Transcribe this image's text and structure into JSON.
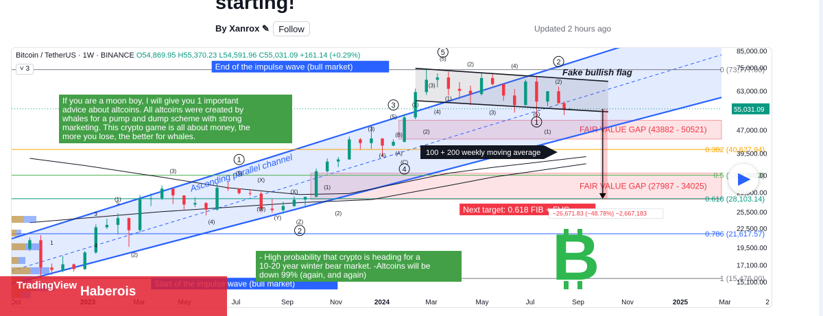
{
  "post": {
    "title": "starting!",
    "author_prefix": "By",
    "author": "Xanrox",
    "follow_label": "Follow",
    "updated": "Updated 2 hours ago"
  },
  "symbol_bar": {
    "symbol": "Bitcoin / TetherUS · 1W · BINANCE",
    "ohlc": "O54,869.95 H55,370.23 L54,591.96 C55,031.09 +161.14 (+0.29%)",
    "collapse_label": "˅ 3"
  },
  "brand": {
    "logo": "TradingView",
    "handle": "Haberois"
  },
  "colors": {
    "up_candle": "#089981",
    "down_candle": "#f23645",
    "channel_line": "#2962ff",
    "channel_fill": "rgba(41,98,255,0.13)",
    "fvg_fill": "rgba(242,54,69,0.14)",
    "fib_0382": "#f7a600",
    "fib_05": "#4caf50",
    "fib_0618": "#089981",
    "fib_0786": "#2962ff",
    "bitcoin_logo": "#2eb84f",
    "green_note": "#43a047",
    "red_label": "#f23645"
  },
  "chart_data": {
    "type": "candlestick",
    "title": "Bitcoin / TetherUS · 1W · BINANCE",
    "x_tick_labels": [
      "Oct",
      "2023",
      "Mar",
      "May",
      "Jul",
      "Sep",
      "Nov",
      "2024",
      "Mar",
      "May",
      "Jul",
      "Sep",
      "Nov",
      "2025",
      "Mar",
      "2"
    ],
    "y_tick_values": [
      15100,
      17100,
      19500,
      22500,
      25500,
      29500,
      33500,
      39500,
      47000,
      55000,
      63000,
      75000,
      85000
    ],
    "y_scale": "log",
    "ylim": [
      14500,
      87000
    ],
    "current_price": 55031.09,
    "candles": [
      {
        "date": "2022-10-24",
        "open": 19300,
        "high": 21000,
        "low": 19000,
        "close": 20600
      },
      {
        "date": "2022-11-07",
        "open": 20600,
        "high": 21400,
        "low": 15500,
        "close": 16800
      },
      {
        "date": "2022-11-21",
        "open": 16800,
        "high": 17300,
        "low": 15900,
        "close": 16500
      },
      {
        "date": "2022-12-05",
        "open": 16500,
        "high": 18300,
        "low": 16200,
        "close": 17200
      },
      {
        "date": "2022-12-19",
        "open": 17200,
        "high": 17300,
        "low": 16300,
        "close": 16600
      },
      {
        "date": "2023-01-02",
        "open": 16600,
        "high": 19000,
        "low": 16500,
        "close": 18800
      },
      {
        "date": "2023-01-16",
        "open": 18800,
        "high": 23200,
        "low": 18600,
        "close": 22700
      },
      {
        "date": "2023-01-30",
        "open": 22700,
        "high": 24200,
        "low": 22400,
        "close": 23100
      },
      {
        "date": "2023-02-13",
        "open": 23100,
        "high": 25200,
        "low": 21500,
        "close": 24300
      },
      {
        "date": "2023-02-27",
        "open": 24300,
        "high": 24400,
        "low": 19600,
        "close": 22200
      },
      {
        "date": "2023-03-13",
        "open": 22200,
        "high": 28900,
        "low": 21800,
        "close": 28000
      },
      {
        "date": "2023-03-27",
        "open": 28000,
        "high": 29200,
        "low": 26600,
        "close": 28200
      },
      {
        "date": "2023-04-10",
        "open": 28200,
        "high": 31000,
        "low": 27800,
        "close": 30300
      },
      {
        "date": "2023-04-24",
        "open": 30300,
        "high": 30100,
        "low": 27000,
        "close": 28800
      },
      {
        "date": "2023-05-08",
        "open": 28800,
        "high": 28600,
        "low": 25900,
        "close": 26900
      },
      {
        "date": "2023-05-22",
        "open": 26900,
        "high": 28400,
        "low": 26400,
        "close": 27200
      },
      {
        "date": "2023-06-05",
        "open": 27200,
        "high": 27400,
        "low": 24800,
        "close": 25900
      },
      {
        "date": "2023-06-19",
        "open": 25900,
        "high": 31400,
        "low": 25700,
        "close": 30500
      },
      {
        "date": "2023-07-03",
        "open": 30500,
        "high": 31800,
        "low": 29800,
        "close": 30300
      },
      {
        "date": "2023-07-17",
        "open": 30300,
        "high": 30400,
        "low": 29000,
        "close": 29300
      },
      {
        "date": "2023-07-31",
        "open": 29300,
        "high": 30000,
        "low": 28700,
        "close": 29200
      },
      {
        "date": "2023-08-14",
        "open": 29200,
        "high": 29600,
        "low": 25300,
        "close": 26100
      },
      {
        "date": "2023-08-28",
        "open": 26100,
        "high": 28100,
        "low": 25300,
        "close": 25800
      },
      {
        "date": "2023-09-11",
        "open": 25800,
        "high": 27500,
        "low": 25100,
        "close": 26600
      },
      {
        "date": "2023-09-25",
        "open": 26600,
        "high": 28600,
        "low": 26400,
        "close": 27900
      },
      {
        "date": "2023-10-09",
        "open": 27900,
        "high": 28200,
        "low": 26500,
        "close": 28500
      },
      {
        "date": "2023-10-23",
        "open": 28500,
        "high": 35200,
        "low": 28400,
        "close": 34500
      },
      {
        "date": "2023-11-06",
        "open": 34500,
        "high": 38000,
        "low": 34200,
        "close": 37100
      },
      {
        "date": "2023-11-20",
        "open": 37100,
        "high": 38400,
        "low": 35600,
        "close": 37700
      },
      {
        "date": "2023-12-04",
        "open": 37700,
        "high": 44700,
        "low": 37600,
        "close": 43800
      },
      {
        "date": "2023-12-18",
        "open": 43800,
        "high": 44300,
        "low": 40500,
        "close": 42600
      },
      {
        "date": "2024-01-01",
        "open": 42600,
        "high": 48900,
        "low": 40800,
        "close": 44100
      },
      {
        "date": "2024-01-15",
        "open": 44100,
        "high": 44200,
        "low": 38600,
        "close": 41800
      },
      {
        "date": "2024-01-29",
        "open": 41800,
        "high": 43800,
        "low": 41600,
        "close": 43000
      },
      {
        "date": "2024-02-12",
        "open": 43000,
        "high": 52800,
        "low": 42800,
        "close": 51600
      },
      {
        "date": "2024-02-26",
        "open": 51600,
        "high": 64000,
        "low": 50900,
        "close": 62400
      },
      {
        "date": "2024-03-11",
        "open": 62400,
        "high": 73777,
        "low": 61100,
        "close": 68400
      },
      {
        "date": "2024-03-25",
        "open": 68400,
        "high": 71700,
        "low": 64600,
        "close": 69600
      },
      {
        "date": "2024-04-08",
        "open": 69600,
        "high": 72700,
        "low": 60800,
        "close": 63900
      },
      {
        "date": "2024-04-22",
        "open": 63900,
        "high": 67200,
        "low": 59200,
        "close": 63000
      },
      {
        "date": "2024-05-06",
        "open": 63000,
        "high": 65500,
        "low": 56600,
        "close": 61500
      },
      {
        "date": "2024-05-20",
        "open": 61500,
        "high": 71900,
        "low": 60800,
        "close": 69300
      },
      {
        "date": "2024-06-03",
        "open": 69300,
        "high": 72000,
        "low": 65500,
        "close": 66200
      },
      {
        "date": "2024-06-17",
        "open": 66200,
        "high": 66700,
        "low": 58400,
        "close": 60800
      },
      {
        "date": "2024-07-01",
        "open": 60800,
        "high": 63800,
        "low": 53500,
        "close": 56600
      },
      {
        "date": "2024-07-15",
        "open": 56600,
        "high": 68400,
        "low": 56500,
        "close": 67500
      },
      {
        "date": "2024-07-29",
        "open": 67500,
        "high": 69900,
        "low": 49100,
        "close": 58100
      },
      {
        "date": "2024-08-12",
        "open": 58100,
        "high": 62700,
        "low": 56100,
        "close": 62800
      },
      {
        "date": "2024-08-26",
        "open": 62800,
        "high": 65000,
        "low": 57200,
        "close": 57400
      },
      {
        "date": "2024-09-02",
        "open": 57400,
        "high": 58200,
        "low": 52500,
        "close": 54900
      },
      {
        "date": "2024-09-09",
        "open": 54869.95,
        "high": 55370.23,
        "low": 54591.96,
        "close": 55031.09
      }
    ],
    "channel": {
      "label": "Ascending parallel channel",
      "upper": [
        {
          "date": "2022-12-05",
          "price": 23500
        },
        {
          "date": "2024-11-04",
          "price": 86000
        }
      ],
      "middle": [
        {
          "date": "2022-11-07",
          "price": 17500
        },
        {
          "date": "2024-11-04",
          "price": 64500
        }
      ],
      "lower": [
        {
          "date": "2022-10-24",
          "price": 15400
        },
        {
          "date": "2024-11-04",
          "price": 48500
        }
      ]
    },
    "flag": {
      "label": "Fake bullish flag",
      "top": [
        {
          "date": "2024-02-26",
          "price": 74500
        },
        {
          "date": "2024-10-28",
          "price": 67600
        }
      ],
      "bottom": [
        {
          "date": "2024-02-26",
          "price": 58500
        },
        {
          "date": "2024-10-28",
          "price": 53800
        }
      ]
    },
    "horizontal_levels": [
      {
        "label": "0 (73,777.00)",
        "price": 73777,
        "color_key": "fib_0"
      },
      {
        "label": "0.382 (40,627.94)",
        "price": 40627.94,
        "color_key": "fib_0382"
      },
      {
        "label": "0.5 (33,503.63)",
        "price": 33503.63,
        "color_key": "fib_05"
      },
      {
        "label": "0.618 (28,103.14)",
        "price": 28103.14,
        "color_key": "fib_0618"
      },
      {
        "label": "0.786 (21,617.57)",
        "price": 21617.57,
        "color_key": "fib_0786"
      },
      {
        "label": "1 (15,476.00)",
        "price": 15476,
        "color_key": "fib_1"
      }
    ],
    "zones": [
      {
        "label": "FAIR VALUE GAP (43882 - 50521)",
        "low": 43882,
        "high": 50521,
        "from": "2024-02-05",
        "to": "2025-09-01"
      },
      {
        "label": "FAIR VALUE GAP (27987 - 34025)",
        "low": 27987,
        "high": 34025,
        "from": "2023-10-16",
        "to": "2025-09-01"
      }
    ],
    "moving_averages": {
      "label": "100 + 200 weekly moving average",
      "ma100": [
        {
          "date": "2022-10-24",
          "price": 38000
        },
        {
          "date": "2023-01-02",
          "price": 36000
        },
        {
          "date": "2023-04-10",
          "price": 33000
        },
        {
          "date": "2023-07-03",
          "price": 30500
        },
        {
          "date": "2023-10-02",
          "price": 29000
        },
        {
          "date": "2023-12-04",
          "price": 29200
        },
        {
          "date": "2024-02-05",
          "price": 31500
        },
        {
          "date": "2024-04-08",
          "price": 34000
        },
        {
          "date": "2024-06-03",
          "price": 35500
        },
        {
          "date": "2024-09-30",
          "price": 38500
        }
      ],
      "ma200": [
        {
          "date": "2022-10-24",
          "price": 23500
        },
        {
          "date": "2023-04-10",
          "price": 25500
        },
        {
          "date": "2023-10-02",
          "price": 27300
        },
        {
          "date": "2024-01-01",
          "price": 27900
        },
        {
          "date": "2024-04-08",
          "price": 31000
        },
        {
          "date": "2024-06-03",
          "price": 33000
        },
        {
          "date": "2024-09-30",
          "price": 36500
        }
      ]
    },
    "projection": {
      "from": {
        "date": "2024-10-21",
        "price": 55000
      },
      "to": {
        "date": "2024-10-21",
        "price": 28103
      }
    },
    "wave_labels": [
      {
        "text": "1",
        "date": "2022-11-21",
        "price": 19900,
        "style": "plain"
      },
      {
        "text": "4",
        "date": "2023-01-16",
        "price": 19500,
        "style": "plain"
      },
      {
        "text": "3",
        "date": "2023-01-16",
        "price": 24700,
        "style": "plain"
      },
      {
        "text": "5",
        "date": "2023-02-13",
        "price": 26800,
        "style": "plain"
      },
      {
        "text": "(1)",
        "date": "2023-02-13",
        "price": 27600,
        "style": "plain"
      },
      {
        "text": "(2)",
        "date": "2023-03-06",
        "price": 18200,
        "style": "plain"
      },
      {
        "text": "(3)",
        "date": "2023-04-24",
        "price": 34000,
        "style": "plain"
      },
      {
        "text": "(4)",
        "date": "2023-06-12",
        "price": 23300,
        "style": "plain"
      },
      {
        "text": "1",
        "date": "2023-07-17",
        "price": 36900,
        "style": "circle"
      },
      {
        "text": "(5)",
        "date": "2023-07-17",
        "price": 33500,
        "style": "plain"
      },
      {
        "text": "(X)",
        "date": "2023-08-14",
        "price": 31800,
        "style": "plain"
      },
      {
        "text": "(W)",
        "date": "2023-08-14",
        "price": 25600,
        "style": "plain"
      },
      {
        "text": "(X)",
        "date": "2023-09-25",
        "price": 29200,
        "style": "plain"
      },
      {
        "text": "(Y)",
        "date": "2023-09-04",
        "price": 24000,
        "style": "plain"
      },
      {
        "text": "(Z)",
        "date": "2023-10-02",
        "price": 23300,
        "style": "plain"
      },
      {
        "text": "2",
        "date": "2023-10-02",
        "price": 21700,
        "style": "circle"
      },
      {
        "text": "(1)",
        "date": "2023-11-06",
        "price": 30200,
        "style": "plain"
      },
      {
        "text": "(2)",
        "date": "2023-11-20",
        "price": 24800,
        "style": "plain"
      },
      {
        "text": "(3)",
        "date": "2024-01-01",
        "price": 46600,
        "style": "plain"
      },
      {
        "text": "(4)",
        "date": "2024-01-15",
        "price": 38300,
        "style": "plain"
      },
      {
        "text": "(A)",
        "date": "2024-02-05",
        "price": 38900,
        "style": "plain"
      },
      {
        "text": "(B)",
        "date": "2024-02-05",
        "price": 44700,
        "style": "plain"
      },
      {
        "text": "(C)",
        "date": "2024-02-12",
        "price": 36400,
        "style": "plain"
      },
      {
        "text": "4",
        "date": "2024-02-12",
        "price": 34400,
        "style": "circle"
      },
      {
        "text": "3",
        "date": "2024-01-29",
        "price": 55500,
        "style": "circle"
      },
      {
        "text": "(5)",
        "date": "2024-01-29",
        "price": 51200,
        "style": "plain"
      },
      {
        "text": "(1)",
        "date": "2024-02-26",
        "price": 55900,
        "style": "plain"
      },
      {
        "text": "(2)",
        "date": "2024-03-11",
        "price": 45700,
        "style": "plain"
      },
      {
        "text": "(3)",
        "date": "2024-03-18",
        "price": 64600,
        "style": "plain"
      },
      {
        "text": "(4)",
        "date": "2024-03-25",
        "price": 53100,
        "style": "plain"
      },
      {
        "text": "5",
        "date": "2024-04-01",
        "price": 82400,
        "style": "circle"
      },
      {
        "text": "(5)",
        "date": "2024-04-01",
        "price": 78900,
        "style": "plain"
      },
      {
        "text": "(1)",
        "date": "2024-04-08",
        "price": 58600,
        "style": "plain"
      },
      {
        "text": "(2)",
        "date": "2024-05-06",
        "price": 75800,
        "style": "plain"
      },
      {
        "text": "(3)",
        "date": "2024-06-03",
        "price": 52700,
        "style": "plain"
      },
      {
        "text": "(4)",
        "date": "2024-07-01",
        "price": 74700,
        "style": "plain"
      },
      {
        "text": "2",
        "date": "2024-08-26",
        "price": 76800,
        "style": "circle"
      },
      {
        "text": "(2)",
        "date": "2024-08-26",
        "price": 66400,
        "style": "plain"
      },
      {
        "text": "(5)",
        "date": "2024-07-29",
        "price": 52100,
        "style": "plain"
      },
      {
        "text": "1",
        "date": "2024-07-29",
        "price": 48900,
        "style": "circle"
      },
      {
        "text": "(1)",
        "date": "2024-08-12",
        "price": 45700,
        "style": "plain"
      }
    ],
    "annotations": [
      {
        "text": "End of the impulse wave (bull market)",
        "date": "2023-07-17",
        "price": 74500,
        "style": "blue-box"
      },
      {
        "text": "Start of the impulse wave (bull market)",
        "date": "2023-05-01",
        "price": 14700,
        "style": "blue-box"
      },
      {
        "text": "Next target: 0.618 FIB + FVG",
        "date": "2024-05-27",
        "price": 25600,
        "style": "red-box"
      },
      {
        "text": "−26,671.83 (−48.78%) −2,667,183",
        "date": "2024-09-09",
        "price": 25000,
        "style": "measure"
      }
    ],
    "notes": [
      {
        "text": "If you are a moon boy, I will give you 1 important advice about altcoins. All altcoins were created by whales for a pump and dump scheme with strong marketing. This crypto game is all about money, the more you lose, the better for whales."
      },
      {
        "text": "- High probability that crypto is heading for a 10-20 year winter bear market. -Altcoins will be down 99% (again, and again)"
      }
    ]
  }
}
